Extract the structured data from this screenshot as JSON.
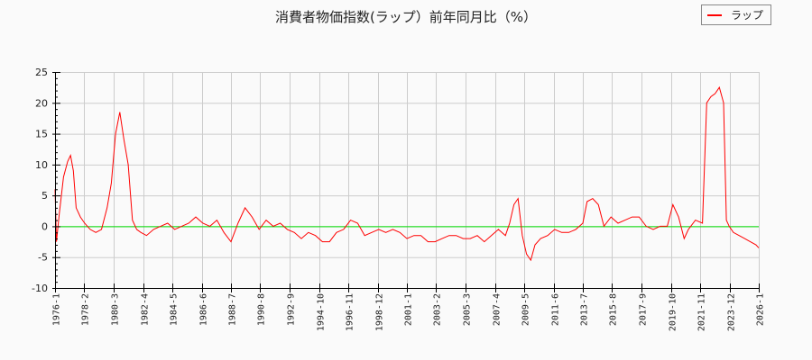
{
  "title": "消費者物価指数(ラップ）前年同月比（%）",
  "legend": {
    "items": [
      {
        "label": "ラップ",
        "color": "#ff0000"
      }
    ]
  },
  "colors": {
    "series": "#ff0000",
    "zero_line": "#00dd00",
    "grid": "#cccccc",
    "axis": "#000000",
    "background": "#fafafa"
  },
  "chart_data": {
    "type": "line",
    "title": "消費者物価指数(ラップ）前年同月比（%）",
    "xlabel": "",
    "ylabel": "",
    "ylim": [
      -10,
      25
    ],
    "xlim": [
      "1976-1",
      "2026-1"
    ],
    "grid": true,
    "legend_position": "top-right",
    "yticks": [
      25,
      20,
      15,
      10,
      5,
      0,
      -5,
      -10
    ],
    "xticks": [
      "1976-1",
      "1978-2",
      "1980-3",
      "1982-4",
      "1984-5",
      "1986-6",
      "1988-7",
      "1990-8",
      "1992-9",
      "1994-10",
      "1996-11",
      "1998-12",
      "2001-1",
      "2003-2",
      "2005-3",
      "2007-4",
      "2009-5",
      "2011-6",
      "2013-7",
      "2015-8",
      "2017-9",
      "2019-10",
      "2021-11",
      "2023-12",
      "2026-1"
    ],
    "reference_line": {
      "y": 0,
      "color": "#00dd00"
    },
    "series": [
      {
        "name": "ラップ",
        "color": "#ff0000",
        "x": [
          1976.0,
          1976.1,
          1976.3,
          1976.6,
          1976.9,
          1977.1,
          1977.3,
          1977.5,
          1977.8,
          1978.1,
          1978.5,
          1978.9,
          1979.3,
          1979.7,
          1980.0,
          1980.3,
          1980.6,
          1980.9,
          1981.2,
          1981.5,
          1981.8,
          1982.1,
          1982.5,
          1983.0,
          1983.5,
          1984.0,
          1984.5,
          1985.0,
          1985.5,
          1986.0,
          1986.5,
          1987.0,
          1987.5,
          1988.0,
          1988.5,
          1989.0,
          1989.5,
          1990.0,
          1990.5,
          1991.0,
          1991.5,
          1992.0,
          1992.5,
          1993.0,
          1993.5,
          1994.0,
          1994.5,
          1995.0,
          1995.5,
          1996.0,
          1996.5,
          1997.0,
          1997.5,
          1998.0,
          1998.5,
          1999.0,
          1999.5,
          2000.0,
          2000.5,
          2001.0,
          2001.5,
          2002.0,
          2002.5,
          2003.0,
          2003.5,
          2004.0,
          2004.5,
          2005.0,
          2005.5,
          2006.0,
          2006.5,
          2007.0,
          2007.5,
          2008.0,
          2008.3,
          2008.6,
          2008.9,
          2009.2,
          2009.5,
          2009.8,
          2010.1,
          2010.5,
          2011.0,
          2011.5,
          2012.0,
          2012.5,
          2013.0,
          2013.5,
          2013.8,
          2014.2,
          2014.6,
          2015.0,
          2015.5,
          2016.0,
          2016.5,
          2017.0,
          2017.5,
          2018.0,
          2018.5,
          2019.0,
          2019.5,
          2019.9,
          2020.3,
          2020.7,
          2021.0,
          2021.5,
          2022.0,
          2022.3,
          2022.6,
          2022.9,
          2023.2,
          2023.5,
          2023.7,
          2023.9,
          2024.2,
          2024.6,
          2025.0,
          2025.4,
          2025.8,
          2026.0
        ],
        "values": [
          6.0,
          -2.5,
          2.0,
          8.0,
          10.5,
          11.5,
          9.0,
          3.0,
          1.5,
          0.5,
          -0.5,
          -1.0,
          -0.5,
          3.0,
          7.0,
          15.0,
          18.5,
          14.0,
          10.0,
          1.0,
          -0.5,
          -1.0,
          -1.5,
          -0.5,
          0.0,
          0.5,
          -0.5,
          0.0,
          0.5,
          1.5,
          0.5,
          0.0,
          1.0,
          -1.0,
          -2.5,
          0.5,
          3.0,
          1.5,
          -0.5,
          1.0,
          0.0,
          0.5,
          -0.5,
          -1.0,
          -2.0,
          -1.0,
          -1.5,
          -2.5,
          -2.5,
          -1.0,
          -0.5,
          1.0,
          0.5,
          -1.5,
          -1.0,
          -0.5,
          -1.0,
          -0.5,
          -1.0,
          -2.0,
          -1.5,
          -1.5,
          -2.5,
          -2.5,
          -2.0,
          -1.5,
          -1.5,
          -2.0,
          -2.0,
          -1.5,
          -2.5,
          -1.5,
          -0.5,
          -1.5,
          0.5,
          3.5,
          4.5,
          -1.5,
          -4.5,
          -5.5,
          -3.0,
          -2.0,
          -1.5,
          -0.5,
          -1.0,
          -1.0,
          -0.5,
          0.5,
          4.0,
          4.5,
          3.5,
          0.0,
          1.5,
          0.5,
          1.0,
          1.5,
          1.5,
          0.0,
          -0.5,
          0.0,
          0.0,
          3.5,
          1.5,
          -2.0,
          -0.5,
          1.0,
          0.5,
          20.0,
          21.0,
          21.5,
          22.5,
          20.0,
          1.0,
          0.0,
          -1.0,
          -1.5,
          -2.0,
          -2.5,
          -3.0,
          -3.5
        ]
      }
    ]
  },
  "axes": {
    "y_labels": [
      "25",
      "20",
      "15",
      "10",
      "5",
      "0",
      "-5",
      "-10"
    ],
    "x_labels": [
      "1976-1",
      "1978-2",
      "1980-3",
      "1982-4",
      "1984-5",
      "1986-6",
      "1988-7",
      "1990-8",
      "1992-9",
      "1994-10",
      "1996-11",
      "1998-12",
      "2001-1",
      "2003-2",
      "2005-3",
      "2007-4",
      "2009-5",
      "2011-6",
      "2013-7",
      "2015-8",
      "2017-9",
      "2019-10",
      "2021-11",
      "2023-12",
      "2026-1"
    ]
  }
}
